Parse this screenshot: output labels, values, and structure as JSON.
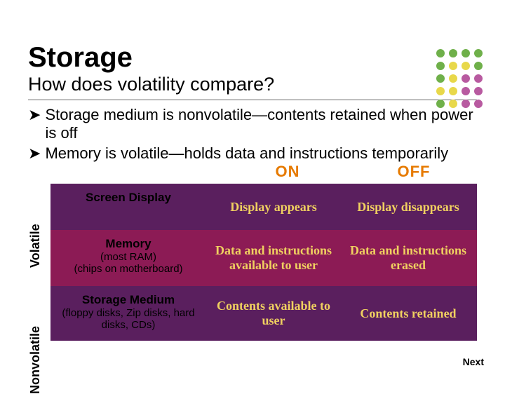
{
  "dots": {
    "colors": [
      "#6fb04a",
      "#6fb04a",
      "#6fb04a",
      "#6fb04a",
      "#6fb04a",
      "#e8d84a",
      "#e8d84a",
      "#6fb04a",
      "#6fb04a",
      "#e8d84a",
      "#b85aa0",
      "#b85aa0",
      "#e8d84a",
      "#e8d84a",
      "#b85aa0",
      "#b85aa0",
      "#6fb04a",
      "#e8d84a",
      "#b85aa0",
      "#b85aa0"
    ]
  },
  "title": "Storage",
  "subtitle": "How does volatility compare?",
  "bullets": [
    "Storage medium is nonvolatile—contents retained when power is off",
    "Memory is volatile—holds data and instructions temporarily"
  ],
  "arrow_glyph": "➤",
  "headers": {
    "on": "ON",
    "off": "OFF",
    "color": "#e67a00"
  },
  "side_labels": {
    "volatile": "Volatile",
    "nonvolatile": "Nonvolatile"
  },
  "rows": [
    {
      "label_bold": "Screen Display",
      "label_sub": "",
      "on": "Display appears",
      "off": "Display disappears",
      "bg": "#5a1f5e",
      "value_color": "#f0d060"
    },
    {
      "label_bold": "Memory",
      "label_sub": "(most RAM)\n(chips on motherboard)",
      "on": "Data and instructions available to user",
      "off": "Data and instructions erased",
      "bg": "#8c1b55",
      "value_color": "#f0d060"
    },
    {
      "label_bold": "Storage Medium",
      "label_sub": "(floppy disks, Zip disks, hard disks, CDs)",
      "on": "Contents available to user",
      "off": "Contents retained",
      "bg": "#5a1f5e",
      "value_color": "#f0d060"
    }
  ],
  "next_label": "Next"
}
